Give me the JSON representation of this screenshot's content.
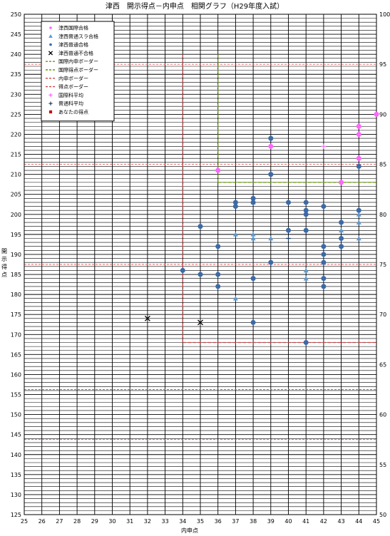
{
  "chart_data": {
    "type": "scatter",
    "title": "津西　開示得点－内申点　相関グラフ（H29年度入試）",
    "xlabel": "内申点",
    "ylabel": "開示得点",
    "xlim": [
      25,
      45
    ],
    "ylim": [
      125,
      250
    ],
    "y2lim": [
      50,
      100
    ],
    "x_ticks": [
      25,
      26,
      27,
      28,
      29,
      30,
      31,
      32,
      33,
      34,
      35,
      36,
      37,
      38,
      39,
      40,
      41,
      42,
      43,
      44,
      45
    ],
    "y_ticks": [
      125,
      130,
      135,
      140,
      145,
      150,
      155,
      160,
      165,
      170,
      175,
      180,
      185,
      190,
      195,
      200,
      205,
      210,
      215,
      220,
      225,
      230,
      235,
      240,
      245,
      250
    ],
    "y2_ticks": [
      50,
      55,
      60,
      65,
      70,
      75,
      80,
      85,
      90,
      95,
      100
    ],
    "y2_dashed_levels": [
      57.5,
      62.5,
      75,
      85,
      95
    ],
    "grid": true,
    "legend_position": "top-left",
    "legend": [
      "津西国際合格",
      "津西普通スラ合格",
      "津西普通合格",
      "津西普通不合格",
      "国際内申ボーダー",
      "国際得点ボーダー",
      "内申ボーダー",
      "得点ボーダー",
      "国際科平均",
      "普通科平均",
      "あなたの得点"
    ],
    "series": [
      {
        "name": "津西国際合格",
        "color": "#ff66ff",
        "marker": "circle",
        "points": [
          [
            36,
            211
          ],
          [
            39,
            217
          ],
          [
            43,
            208
          ],
          [
            44,
            214
          ],
          [
            44,
            220
          ],
          [
            44,
            222
          ],
          [
            45,
            225
          ]
        ]
      },
      {
        "name": "津西普通スラ合格",
        "color": "#5b9bd5",
        "marker": "triangle",
        "points": [
          [
            37,
            179
          ],
          [
            37,
            195
          ],
          [
            38,
            194
          ],
          [
            38,
            195
          ],
          [
            38,
            203
          ],
          [
            39,
            194
          ],
          [
            41,
            184
          ],
          [
            41,
            186
          ],
          [
            42,
            188
          ],
          [
            43,
            196
          ],
          [
            44,
            194
          ],
          [
            44,
            198
          ],
          [
            44,
            200
          ]
        ]
      },
      {
        "name": "津西普通合格",
        "color": "#3c6aa8",
        "marker": "circle",
        "points": [
          [
            34,
            186
          ],
          [
            35,
            185
          ],
          [
            35,
            197
          ],
          [
            36,
            182
          ],
          [
            36,
            185
          ],
          [
            36,
            192
          ],
          [
            37,
            202
          ],
          [
            37,
            203
          ],
          [
            38,
            173
          ],
          [
            38,
            184
          ],
          [
            38,
            203
          ],
          [
            38,
            204
          ],
          [
            39,
            188
          ],
          [
            39,
            210
          ],
          [
            39,
            219
          ],
          [
            40,
            196
          ],
          [
            40,
            203
          ],
          [
            41,
            168
          ],
          [
            41,
            196
          ],
          [
            41,
            200
          ],
          [
            41,
            201
          ],
          [
            41,
            203
          ],
          [
            42,
            182
          ],
          [
            42,
            184
          ],
          [
            42,
            188
          ],
          [
            42,
            190
          ],
          [
            42,
            192
          ],
          [
            42,
            202
          ],
          [
            43,
            192
          ],
          [
            43,
            194
          ],
          [
            43,
            198
          ],
          [
            44,
            201
          ],
          [
            44,
            212
          ]
        ]
      },
      {
        "name": "津西普通不合格",
        "color": "#000000",
        "marker": "x",
        "points": [
          [
            32,
            174
          ],
          [
            35,
            173
          ]
        ]
      },
      {
        "name": "国際科平均",
        "color": "#ff66ff",
        "marker": "plus",
        "points": [
          [
            42,
            217
          ]
        ]
      },
      {
        "name": "普通科平均",
        "color": "#1f3864",
        "marker": "plus",
        "points": [
          [
            40,
            194
          ]
        ]
      }
    ],
    "borders": [
      {
        "name": "国際内申ボーダー",
        "color": "#669900",
        "style": "dashed",
        "points": [
          [
            36,
            240
          ],
          [
            36,
            208
          ]
        ]
      },
      {
        "name": "国際得点ボーダー",
        "color": "#669900",
        "style": "dashed",
        "points": [
          [
            36,
            208
          ],
          [
            45,
            208
          ]
        ]
      },
      {
        "name": "内申ボーダー",
        "color": "#cc4444",
        "style": "dashed",
        "points": [
          [
            34,
            240
          ],
          [
            34,
            168
          ]
        ]
      },
      {
        "name": "得点ボーダー",
        "color": "#cc4444",
        "style": "dashed",
        "points": [
          [
            34,
            168
          ],
          [
            45,
            168
          ]
        ]
      }
    ]
  }
}
